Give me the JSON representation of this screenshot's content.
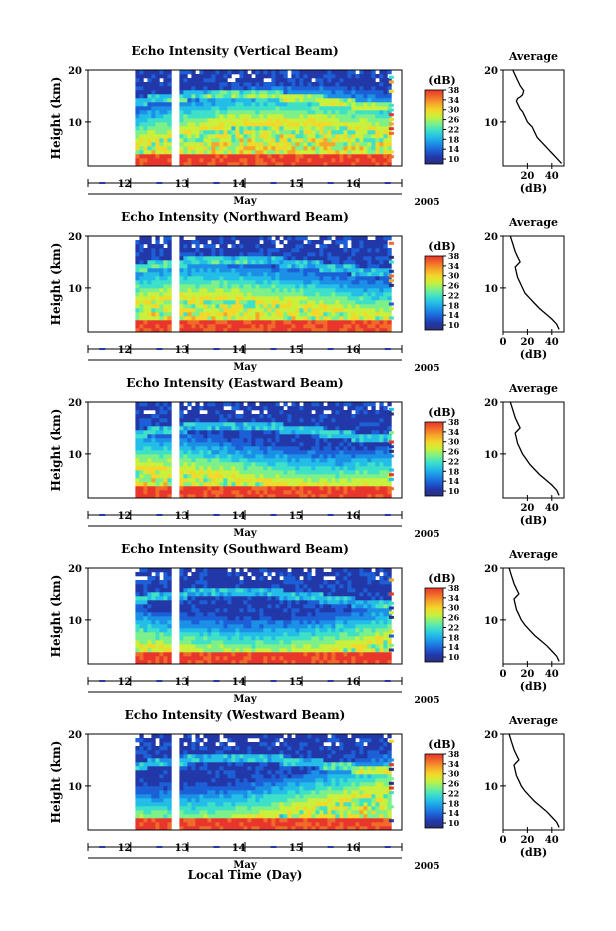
{
  "figure": {
    "bottom_label": "Local Time (Day)",
    "colors": {
      "colormap": [
        "#2b2f7a",
        "#2238a8",
        "#1d5fd6",
        "#1c8fe6",
        "#24bde8",
        "#3fe0c8",
        "#7df08a",
        "#c8f03c",
        "#f2d82a",
        "#f7a52a",
        "#f06a2a",
        "#e8362c"
      ],
      "background": "#ffffff"
    }
  },
  "panels": [
    {
      "title": "Echo Intensity (Vertical Beam)",
      "avg_title": "Average",
      "cb_unit": "(dB)",
      "y_label": "Height (km)",
      "x_label": "May",
      "year": "2005",
      "avg_xlabel": "(dB)",
      "avg_xticks": [
        "20",
        "40"
      ]
    },
    {
      "title": "Echo Intensity (Northward Beam)",
      "avg_title": "Average",
      "cb_unit": "(dB)",
      "y_label": "Height (km)",
      "x_label": "May",
      "year": "2005",
      "avg_xlabel": "(dB)",
      "avg_xticks": [
        "0",
        "20",
        "40"
      ]
    },
    {
      "title": "Echo Intensity (Eastward Beam)",
      "avg_title": "Average",
      "cb_unit": "(dB)",
      "y_label": "Height (km)",
      "x_label": "May",
      "year": "2005",
      "avg_xlabel": "(dB)",
      "avg_xticks": [
        "20",
        "40"
      ]
    },
    {
      "title": "Echo Intensity (Southward Beam)",
      "avg_title": "Average",
      "cb_unit": "(dB)",
      "y_label": "Height (km)",
      "x_label": "May",
      "year": "2005",
      "avg_xlabel": "(dB)",
      "avg_xticks": [
        "0",
        "20",
        "40"
      ]
    },
    {
      "title": "Echo Intensity (Westward Beam)",
      "avg_title": "Average",
      "cb_unit": "(dB)",
      "y_label": "Height (km)",
      "x_label": "May",
      "year": "2005",
      "avg_xlabel": "(dB)",
      "avg_xticks": [
        "0",
        "20",
        "40"
      ]
    }
  ],
  "chart_data": [
    {
      "type": "heatmap",
      "title": "Echo Intensity (Vertical Beam)",
      "xlabel": "May",
      "ylabel": "Height (km)",
      "xlim": [
        11.25,
        16.75
      ],
      "ylim": [
        1.5,
        20
      ],
      "x_ticks": [
        12,
        13,
        14,
        15,
        16
      ],
      "y_ticks": [
        10,
        20
      ],
      "colorbar": {
        "label": "(dB)",
        "range": [
          8,
          38
        ],
        "ticks": [
          10,
          14,
          18,
          22,
          26,
          30,
          34,
          38
        ]
      },
      "data_gaps": [
        [
          11.25,
          12.08
        ],
        [
          12.7,
          12.82
        ],
        [
          16.5,
          16.75
        ]
      ]
    },
    {
      "type": "heatmap",
      "title": "Echo Intensity (Northward Beam)",
      "xlabel": "May",
      "ylabel": "Height (km)",
      "xlim": [
        11.25,
        16.75
      ],
      "ylim": [
        1.5,
        20
      ],
      "x_ticks": [
        12,
        13,
        14,
        15,
        16
      ],
      "y_ticks": [
        10,
        20
      ],
      "colorbar": {
        "label": "(dB)",
        "range": [
          8,
          38
        ],
        "ticks": [
          10,
          14,
          18,
          22,
          26,
          30,
          34,
          38
        ]
      },
      "data_gaps": [
        [
          11.25,
          12.08
        ],
        [
          12.7,
          12.82
        ],
        [
          16.5,
          16.75
        ]
      ]
    },
    {
      "type": "heatmap",
      "title": "Echo Intensity (Eastward Beam)",
      "xlabel": "May",
      "ylabel": "Height (km)",
      "xlim": [
        11.25,
        16.75
      ],
      "ylim": [
        1.5,
        20
      ],
      "x_ticks": [
        12,
        13,
        14,
        15,
        16
      ],
      "y_ticks": [
        10,
        20
      ],
      "colorbar": {
        "label": "(dB)",
        "range": [
          8,
          38
        ],
        "ticks": [
          10,
          14,
          18,
          22,
          26,
          30,
          34,
          38
        ]
      },
      "data_gaps": [
        [
          11.25,
          12.08
        ],
        [
          12.7,
          12.82
        ],
        [
          16.5,
          16.75
        ]
      ]
    },
    {
      "type": "heatmap",
      "title": "Echo Intensity (Southward Beam)",
      "xlabel": "May",
      "ylabel": "Height (km)",
      "xlim": [
        11.25,
        16.75
      ],
      "ylim": [
        1.5,
        20
      ],
      "x_ticks": [
        12,
        13,
        14,
        15,
        16
      ],
      "y_ticks": [
        10,
        20
      ],
      "colorbar": {
        "label": "(dB)",
        "range": [
          8,
          38
        ],
        "ticks": [
          10,
          14,
          18,
          22,
          26,
          30,
          34,
          38
        ]
      },
      "data_gaps": [
        [
          11.25,
          12.08
        ],
        [
          12.7,
          12.82
        ],
        [
          16.5,
          16.75
        ]
      ]
    },
    {
      "type": "heatmap",
      "title": "Echo Intensity (Westward Beam)",
      "xlabel": "May",
      "ylabel": "Height (km)",
      "xlim": [
        11.25,
        16.75
      ],
      "ylim": [
        1.5,
        20
      ],
      "x_ticks": [
        12,
        13,
        14,
        15,
        16
      ],
      "y_ticks": [
        10,
        20
      ],
      "colorbar": {
        "label": "(dB)",
        "range": [
          8,
          38
        ],
        "ticks": [
          10,
          14,
          18,
          22,
          26,
          30,
          34,
          38
        ]
      },
      "data_gaps": [
        [
          11.25,
          12.08
        ],
        [
          12.7,
          12.82
        ],
        [
          16.5,
          16.75
        ]
      ]
    },
    {
      "type": "line",
      "title": "Average",
      "xlabel": "(dB)",
      "ylabel": "Height (km)",
      "xlim": [
        0,
        50
      ],
      "ylim": [
        1.5,
        20
      ],
      "x_ticks": [
        20,
        40
      ],
      "y_ticks": [
        10,
        20
      ],
      "series": [
        {
          "x": [
            48,
            44,
            40,
            36,
            32,
            28,
            26,
            24,
            22,
            20,
            18,
            16,
            14,
            13,
            12,
            11,
            12,
            14,
            16,
            17,
            14,
            12,
            10,
            9,
            8
          ],
          "y": [
            2,
            3,
            4,
            5,
            6,
            7,
            8,
            9,
            9.5,
            10,
            11,
            12,
            12.5,
            13,
            13.5,
            14,
            14.5,
            14.8,
            15.2,
            16,
            17,
            18,
            19,
            19.5,
            20
          ]
        }
      ]
    },
    {
      "type": "line",
      "title": "Average",
      "xlabel": "(dB)",
      "ylabel": "Height (km)",
      "xlim": [
        0,
        50
      ],
      "ylim": [
        1.5,
        20
      ],
      "x_ticks": [
        0,
        20,
        40
      ],
      "y_ticks": [
        10,
        20
      ],
      "series": [
        {
          "x": [
            46,
            44,
            40,
            35,
            30,
            26,
            22,
            18,
            16,
            14,
            12,
            11,
            10,
            12,
            14,
            12,
            10,
            8,
            6
          ],
          "y": [
            2,
            3,
            4,
            5,
            6,
            7,
            8,
            9,
            10,
            11,
            12,
            13,
            14,
            14.5,
            15,
            16,
            17,
            18.5,
            20
          ]
        }
      ]
    },
    {
      "type": "line",
      "title": "Average",
      "xlabel": "(dB)",
      "ylabel": "Height (km)",
      "xlim": [
        0,
        50
      ],
      "ylim": [
        1.5,
        20
      ],
      "x_ticks": [
        20,
        40
      ],
      "y_ticks": [
        10,
        20
      ],
      "series": [
        {
          "x": [
            46,
            44,
            40,
            35,
            30,
            26,
            22,
            19,
            16,
            14,
            12,
            11,
            10,
            12,
            14,
            12,
            10,
            8,
            6
          ],
          "y": [
            2,
            3,
            4,
            5,
            6,
            7,
            8,
            9,
            10,
            11,
            12,
            13,
            14,
            14.5,
            15,
            16,
            17,
            18.5,
            20
          ]
        }
      ]
    },
    {
      "type": "line",
      "title": "Average",
      "xlabel": "(dB)",
      "ylabel": "Height (km)",
      "xlim": [
        0,
        50
      ],
      "ylim": [
        1.5,
        20
      ],
      "x_ticks": [
        0,
        20,
        40
      ],
      "y_ticks": [
        10,
        20
      ],
      "series": [
        {
          "x": [
            46,
            44,
            40,
            36,
            31,
            26,
            22,
            18,
            15,
            13,
            11,
            10,
            9,
            11,
            13,
            11,
            9,
            7,
            5
          ],
          "y": [
            2,
            3,
            4,
            5,
            6,
            7,
            8,
            9,
            10,
            11,
            12,
            13,
            14,
            14.5,
            15,
            16,
            17,
            18.5,
            20
          ]
        }
      ]
    },
    {
      "type": "line",
      "title": "Average",
      "xlabel": "(dB)",
      "ylabel": "Height (km)",
      "xlim": [
        0,
        50
      ],
      "ylim": [
        1.5,
        20
      ],
      "x_ticks": [
        0,
        20,
        40
      ],
      "y_ticks": [
        10,
        20
      ],
      "series": [
        {
          "x": [
            46,
            44,
            40,
            36,
            31,
            26,
            22,
            18,
            15,
            13,
            11,
            10,
            9,
            11,
            13,
            11,
            9,
            7,
            5
          ],
          "y": [
            2,
            3,
            4,
            5,
            6,
            7,
            8,
            9,
            10,
            11,
            12,
            13,
            14,
            14.5,
            15,
            16,
            17,
            18.5,
            20
          ]
        }
      ]
    }
  ]
}
